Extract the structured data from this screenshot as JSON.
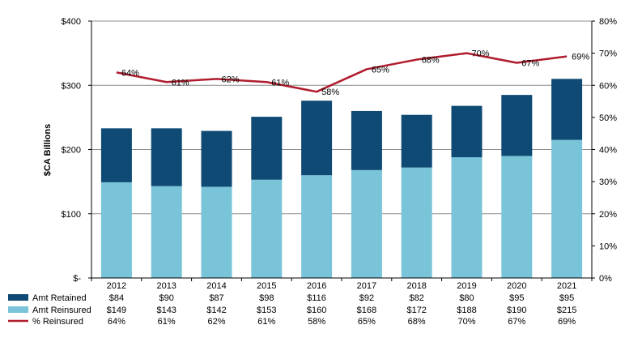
{
  "chart_data": {
    "type": "bar",
    "categories": [
      "2012",
      "2013",
      "2014",
      "2015",
      "2016",
      "2017",
      "2018",
      "2019",
      "2020",
      "2021"
    ],
    "ylabel": "$CA Billions",
    "ylim": [
      0,
      400
    ],
    "y_ticks": [
      "$-",
      "$100",
      "$200",
      "$300",
      "$400"
    ],
    "y2lim": [
      0,
      80
    ],
    "y2_ticks": [
      "0%",
      "10%",
      "20%",
      "30%",
      "40%",
      "50%",
      "60%",
      "70%",
      "80%"
    ],
    "grid": "horizontal",
    "legend": "table-below",
    "series": [
      {
        "name": "Amt Retained",
        "kind": "bar-stacked-top",
        "color": "#0e4a73",
        "values": [
          84,
          90,
          87,
          98,
          116,
          92,
          82,
          80,
          95,
          95
        ],
        "labels": [
          "$84",
          "$90",
          "$87",
          "$98",
          "$116",
          "$92",
          "$82",
          "$80",
          "$95",
          "$95"
        ]
      },
      {
        "name": "Amt Reinsured",
        "kind": "bar-stacked-bottom",
        "color": "#79c4d9",
        "values": [
          149,
          143,
          142,
          153,
          160,
          168,
          172,
          188,
          190,
          215
        ],
        "labels": [
          "$149",
          "$143",
          "$142",
          "$153",
          "$160",
          "$168",
          "$172",
          "$188",
          "$190",
          "$215"
        ]
      },
      {
        "name": "% Reinsured",
        "kind": "line-secondary-axis",
        "color": "#b01c2e",
        "values": [
          64,
          61,
          62,
          61,
          58,
          65,
          68,
          70,
          67,
          69
        ],
        "labels": [
          "64%",
          "61%",
          "62%",
          "61%",
          "58%",
          "65%",
          "68%",
          "70%",
          "67%",
          "69%"
        ]
      }
    ]
  }
}
